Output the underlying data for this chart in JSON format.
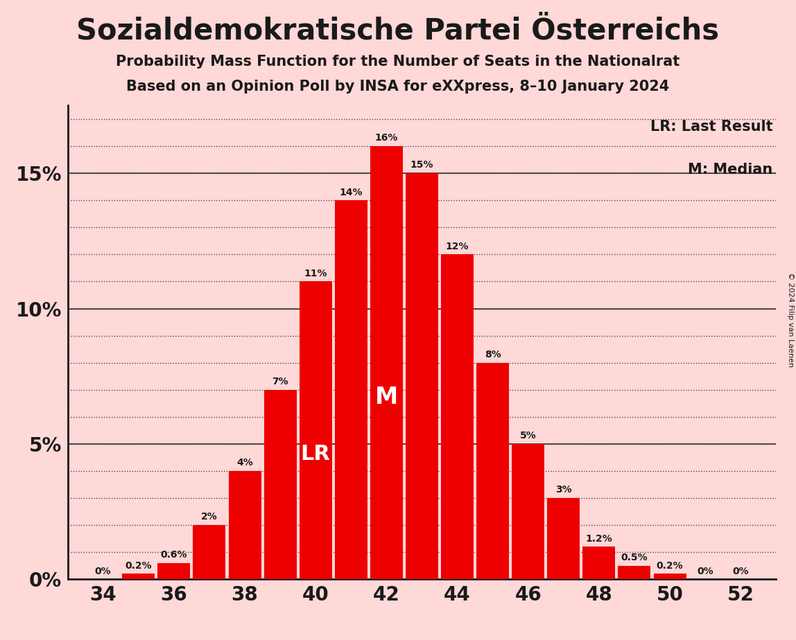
{
  "title": "Sozialdemokratische Partei Österreichs",
  "subtitle1": "Probability Mass Function for the Number of Seats in the Nationalrat",
  "subtitle2": "Based on an Opinion Poll by INSA for eXXpress, 8–10 January 2024",
  "copyright": "© 2024 Filip van Laenen",
  "seats": [
    34,
    35,
    36,
    37,
    38,
    39,
    40,
    41,
    42,
    43,
    44,
    45,
    46,
    47,
    48,
    49,
    50,
    51,
    52
  ],
  "probabilities": [
    0.0,
    0.2,
    0.6,
    2.0,
    4.0,
    7.0,
    11.0,
    14.0,
    16.0,
    15.0,
    12.0,
    8.0,
    5.0,
    3.0,
    1.2,
    0.5,
    0.2,
    0.0,
    0.0
  ],
  "bar_color": "#ee0000",
  "background_color": "#ffd8d8",
  "text_color": "#1a1a1a",
  "lr_seat": 40,
  "median_seat": 42,
  "yticks": [
    0,
    5,
    10,
    15
  ],
  "xticks": [
    34,
    36,
    38,
    40,
    42,
    44,
    46,
    48,
    50,
    52
  ],
  "ylim": [
    0,
    17.5
  ],
  "xlim": [
    33.0,
    53.0
  ],
  "legend_lr": "LR: Last Result",
  "legend_m": "M: Median",
  "title_fontsize": 30,
  "subtitle_fontsize": 15,
  "tick_fontsize": 20,
  "label_fontsize": 10,
  "legend_fontsize": 15
}
